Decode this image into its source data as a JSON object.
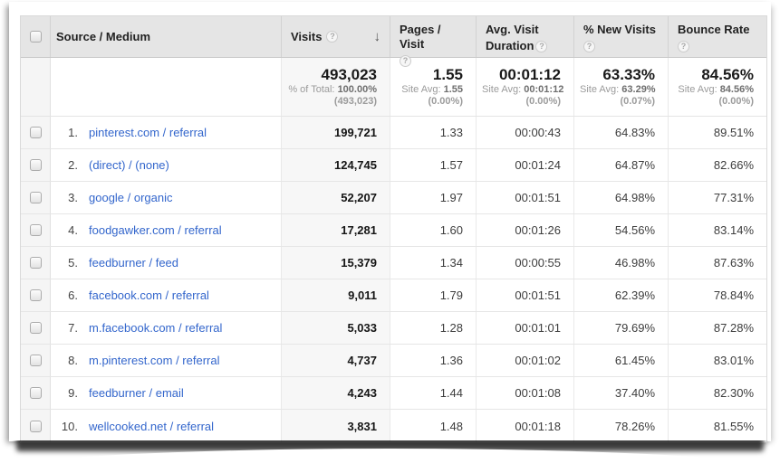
{
  "table": {
    "header": {
      "source_medium": "Source / Medium",
      "visits": "Visits",
      "pages_visit": "Pages / Visit",
      "avg_visit_duration_line1": "Avg. Visit",
      "avg_visit_duration_line2": "Duration",
      "new_visits": "% New Visits",
      "bounce_rate": "Bounce Rate",
      "sort_arrow": "↓",
      "help_glyph": "?"
    },
    "summary": {
      "visits_value": "493,023",
      "visits_total_label": "% of Total:",
      "visits_total_value": "100.00%",
      "visits_total_paren": "(493,023)",
      "site_avg_label": "Site Avg:",
      "pages_value": "1.55",
      "pages_avg": "1.55",
      "pages_delta": "(0.00%)",
      "duration_value": "00:01:12",
      "duration_avg": "00:01:12",
      "duration_delta": "(0.00%)",
      "new_visits_value": "63.33%",
      "new_visits_avg": "63.29%",
      "new_visits_delta": "(0.07%)",
      "bounce_value": "84.56%",
      "bounce_avg": "84.56%",
      "bounce_delta": "(0.00%)"
    },
    "rows": [
      {
        "rank": "1.",
        "source": "pinterest.com / referral",
        "visits": "199,721",
        "pages": "1.33",
        "duration": "00:00:43",
        "new_visits": "64.83%",
        "bounce": "89.51%"
      },
      {
        "rank": "2.",
        "source": "(direct) / (none)",
        "visits": "124,745",
        "pages": "1.57",
        "duration": "00:01:24",
        "new_visits": "64.87%",
        "bounce": "82.66%"
      },
      {
        "rank": "3.",
        "source": "google / organic",
        "visits": "52,207",
        "pages": "1.97",
        "duration": "00:01:51",
        "new_visits": "64.98%",
        "bounce": "77.31%"
      },
      {
        "rank": "4.",
        "source": "foodgawker.com / referral",
        "visits": "17,281",
        "pages": "1.60",
        "duration": "00:01:26",
        "new_visits": "54.56%",
        "bounce": "83.14%"
      },
      {
        "rank": "5.",
        "source": "feedburner / feed",
        "visits": "15,379",
        "pages": "1.34",
        "duration": "00:00:55",
        "new_visits": "46.98%",
        "bounce": "87.63%"
      },
      {
        "rank": "6.",
        "source": "facebook.com / referral",
        "visits": "9,011",
        "pages": "1.79",
        "duration": "00:01:51",
        "new_visits": "62.39%",
        "bounce": "78.84%"
      },
      {
        "rank": "7.",
        "source": "m.facebook.com / referral",
        "visits": "5,033",
        "pages": "1.28",
        "duration": "00:01:01",
        "new_visits": "79.69%",
        "bounce": "87.28%"
      },
      {
        "rank": "8.",
        "source": "m.pinterest.com / referral",
        "visits": "4,737",
        "pages": "1.36",
        "duration": "00:01:02",
        "new_visits": "61.45%",
        "bounce": "83.01%"
      },
      {
        "rank": "9.",
        "source": "feedburner / email",
        "visits": "4,243",
        "pages": "1.44",
        "duration": "00:01:08",
        "new_visits": "37.40%",
        "bounce": "82.30%"
      },
      {
        "rank": "10.",
        "source": "wellcooked.net / referral",
        "visits": "3,831",
        "pages": "1.48",
        "duration": "00:01:18",
        "new_visits": "78.26%",
        "bounce": "81.55%"
      }
    ],
    "colors": {
      "link_blue": "#3366cc",
      "header_bg": "#e5e5e5",
      "sorted_col_bg": "#f7f7f7"
    }
  }
}
